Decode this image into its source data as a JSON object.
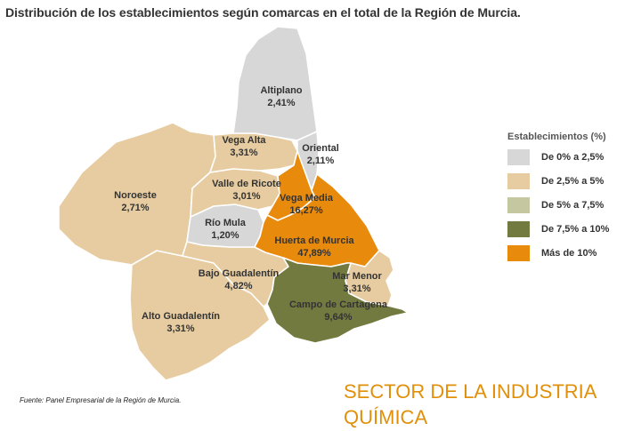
{
  "title": "Distribución de los establecimientos según comarcas en el total de la Región de Murcia.",
  "colors": {
    "bin_0": "#d7d7d7",
    "bin_1": "#e6cca0",
    "bin_2": "#c5c7a1",
    "bin_3": "#737a3f",
    "bin_4": "#e88a0c",
    "sector_text": "#e0900a"
  },
  "legend": {
    "title": "Establecimientos (%)",
    "items": [
      {
        "label": "De 0% a 2,5%",
        "color": "#d7d7d7"
      },
      {
        "label": "De 2,5% a 5%",
        "color": "#e6cca0"
      },
      {
        "label": "De 5% a 7,5%",
        "color": "#c5c7a1"
      },
      {
        "label": "De 7,5% a 10%",
        "color": "#737a3f"
      },
      {
        "label": "Más de 10%",
        "color": "#e88a0c"
      }
    ]
  },
  "regions": {
    "altiplano": {
      "name": "Altiplano",
      "value": "2,41%",
      "color": "#d7d7d7"
    },
    "vega_alta": {
      "name": "Vega Alta",
      "value": "3,31%",
      "color": "#e6cca0"
    },
    "oriental": {
      "name": "Oriental",
      "value": "2,11%",
      "color": "#d7d7d7"
    },
    "noroeste": {
      "name": "Noroeste",
      "value": "2,71%",
      "color": "#e6cca0"
    },
    "valle_ricote": {
      "name": "Valle de Ricote",
      "value": "3,01%",
      "color": "#e6cca0"
    },
    "vega_media": {
      "name": "Vega Media",
      "value": "16,27%",
      "color": "#e88a0c"
    },
    "rio_mula": {
      "name": "Río Mula",
      "value": "1,20%",
      "color": "#d7d7d7"
    },
    "huerta_murcia": {
      "name": "Huerta de Murcia",
      "value": "47,89%",
      "color": "#e88a0c"
    },
    "bajo_guadalentin": {
      "name": "Bajo Guadalentín",
      "value": "4,82%",
      "color": "#e6cca0"
    },
    "mar_menor": {
      "name": "Mar Menor",
      "value": "3,31%",
      "color": "#e6cca0"
    },
    "campo_cartagena": {
      "name": "Campo de Cartagena",
      "value": "9,64%",
      "color": "#737a3f"
    },
    "alto_guadalentin": {
      "name": "Alto Guadalentín",
      "value": "3,31%",
      "color": "#e6cca0"
    }
  },
  "source": "Fuente: Panel Empresarial de la Región de Murcia.",
  "sector": {
    "line1": "SECTOR DE LA INDUSTRIA",
    "line2": "QUÍMICA"
  }
}
